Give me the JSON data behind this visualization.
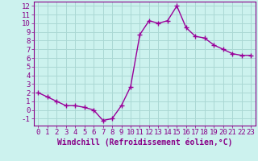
{
  "x": [
    0,
    1,
    2,
    3,
    4,
    5,
    6,
    7,
    8,
    9,
    10,
    11,
    12,
    13,
    14,
    15,
    16,
    17,
    18,
    19,
    20,
    21,
    22,
    23
  ],
  "y": [
    2.0,
    1.5,
    1.0,
    0.5,
    0.5,
    0.3,
    0.0,
    -1.2,
    -1.0,
    0.5,
    2.7,
    8.7,
    10.3,
    10.0,
    10.3,
    12.0,
    9.5,
    8.5,
    8.3,
    7.5,
    7.0,
    6.5,
    6.3,
    6.3
  ],
  "line_color": "#990099",
  "marker": "+",
  "marker_size": 4,
  "bg_color": "#ccf2ee",
  "grid_color": "#aad8d4",
  "xlabel": "Windchill (Refroidissement éolien,°C)",
  "ylim": [
    -1.8,
    12.5
  ],
  "xlim": [
    -0.5,
    23.5
  ],
  "yticks": [
    -1,
    0,
    1,
    2,
    3,
    4,
    5,
    6,
    7,
    8,
    9,
    10,
    11,
    12
  ],
  "xticks": [
    0,
    1,
    2,
    3,
    4,
    5,
    6,
    7,
    8,
    9,
    10,
    11,
    12,
    13,
    14,
    15,
    16,
    17,
    18,
    19,
    20,
    21,
    22,
    23
  ],
  "tick_color": "#880088",
  "font_size": 6.5,
  "xlabel_font_size": 7,
  "line_width": 1.0
}
